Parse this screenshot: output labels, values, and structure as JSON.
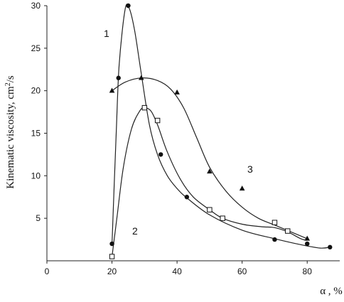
{
  "chart_data": {
    "type": "scatter",
    "title": "",
    "xlabel": "α , %",
    "ylabel_main": "Kinematic viscosity, cm",
    "ylabel_sup": "2",
    "ylabel_tail": "/s",
    "xlim": [
      0,
      90
    ],
    "ylim": [
      0,
      30
    ],
    "x_ticks": [
      0,
      20,
      40,
      60,
      80
    ],
    "y_ticks": [
      5,
      10,
      15,
      20,
      25,
      30
    ],
    "grid": false,
    "legend": "none",
    "series": [
      {
        "name": "1",
        "marker": "circle",
        "points": [
          [
            20,
            2.0
          ],
          [
            22,
            21.5
          ],
          [
            25,
            30.0
          ],
          [
            35,
            12.5
          ],
          [
            43,
            7.5
          ],
          [
            70,
            2.5
          ],
          [
            80,
            2.0
          ],
          [
            87,
            1.6
          ]
        ],
        "curve": [
          [
            20,
            2.0
          ],
          [
            21.3,
            15.0
          ],
          [
            22.2,
            23.0
          ],
          [
            24.0,
            29.5
          ],
          [
            25.3,
            29.7
          ],
          [
            27.0,
            27.0
          ],
          [
            29.0,
            22.0
          ],
          [
            31.5,
            16.0
          ],
          [
            34.0,
            12.5
          ],
          [
            37.0,
            10.0
          ],
          [
            40.0,
            8.5
          ],
          [
            43.0,
            7.4
          ],
          [
            50.0,
            5.4
          ],
          [
            60.0,
            3.6
          ],
          [
            70.0,
            2.6
          ],
          [
            78.0,
            1.9
          ],
          [
            84.0,
            1.5
          ],
          [
            87.0,
            1.6
          ]
        ],
        "curve_label": "1"
      },
      {
        "name": "2",
        "marker": "square-open",
        "points": [
          [
            20,
            0.5
          ],
          [
            30,
            18.0
          ],
          [
            34,
            16.5
          ],
          [
            50,
            6.0
          ],
          [
            54,
            5.0
          ],
          [
            70,
            4.5
          ],
          [
            74,
            3.5
          ]
        ],
        "curve": [
          [
            20,
            0.5
          ],
          [
            21.5,
            5.0
          ],
          [
            23.5,
            11.0
          ],
          [
            26.0,
            15.5
          ],
          [
            28.5,
            17.6
          ],
          [
            30.0,
            18.0
          ],
          [
            32.0,
            17.6
          ],
          [
            34.0,
            16.0
          ],
          [
            37.0,
            12.8
          ],
          [
            41.0,
            9.6
          ],
          [
            45.0,
            7.5
          ],
          [
            50.0,
            6.0
          ],
          [
            54.0,
            5.0
          ],
          [
            60.0,
            4.3
          ],
          [
            66.0,
            4.0
          ],
          [
            70.0,
            3.9
          ],
          [
            74.0,
            3.4
          ],
          [
            78.0,
            2.6
          ],
          [
            80.0,
            2.4
          ]
        ],
        "curve_label": "2"
      },
      {
        "name": "3",
        "marker": "triangle",
        "points": [
          [
            20,
            20.0
          ],
          [
            29,
            21.5
          ],
          [
            40,
            19.8
          ],
          [
            50,
            10.5
          ],
          [
            60,
            8.5
          ],
          [
            80,
            2.6
          ]
        ],
        "curve": [
          [
            20,
            20.0
          ],
          [
            24,
            21.0
          ],
          [
            29,
            21.5
          ],
          [
            34,
            21.2
          ],
          [
            38,
            20.2
          ],
          [
            42,
            18.0
          ],
          [
            46,
            14.5
          ],
          [
            50,
            11.0
          ],
          [
            55,
            8.2
          ],
          [
            60,
            6.3
          ],
          [
            65,
            5.0
          ],
          [
            70,
            4.2
          ],
          [
            75,
            3.4
          ],
          [
            80,
            2.6
          ]
        ],
        "curve_label": "3"
      }
    ]
  }
}
